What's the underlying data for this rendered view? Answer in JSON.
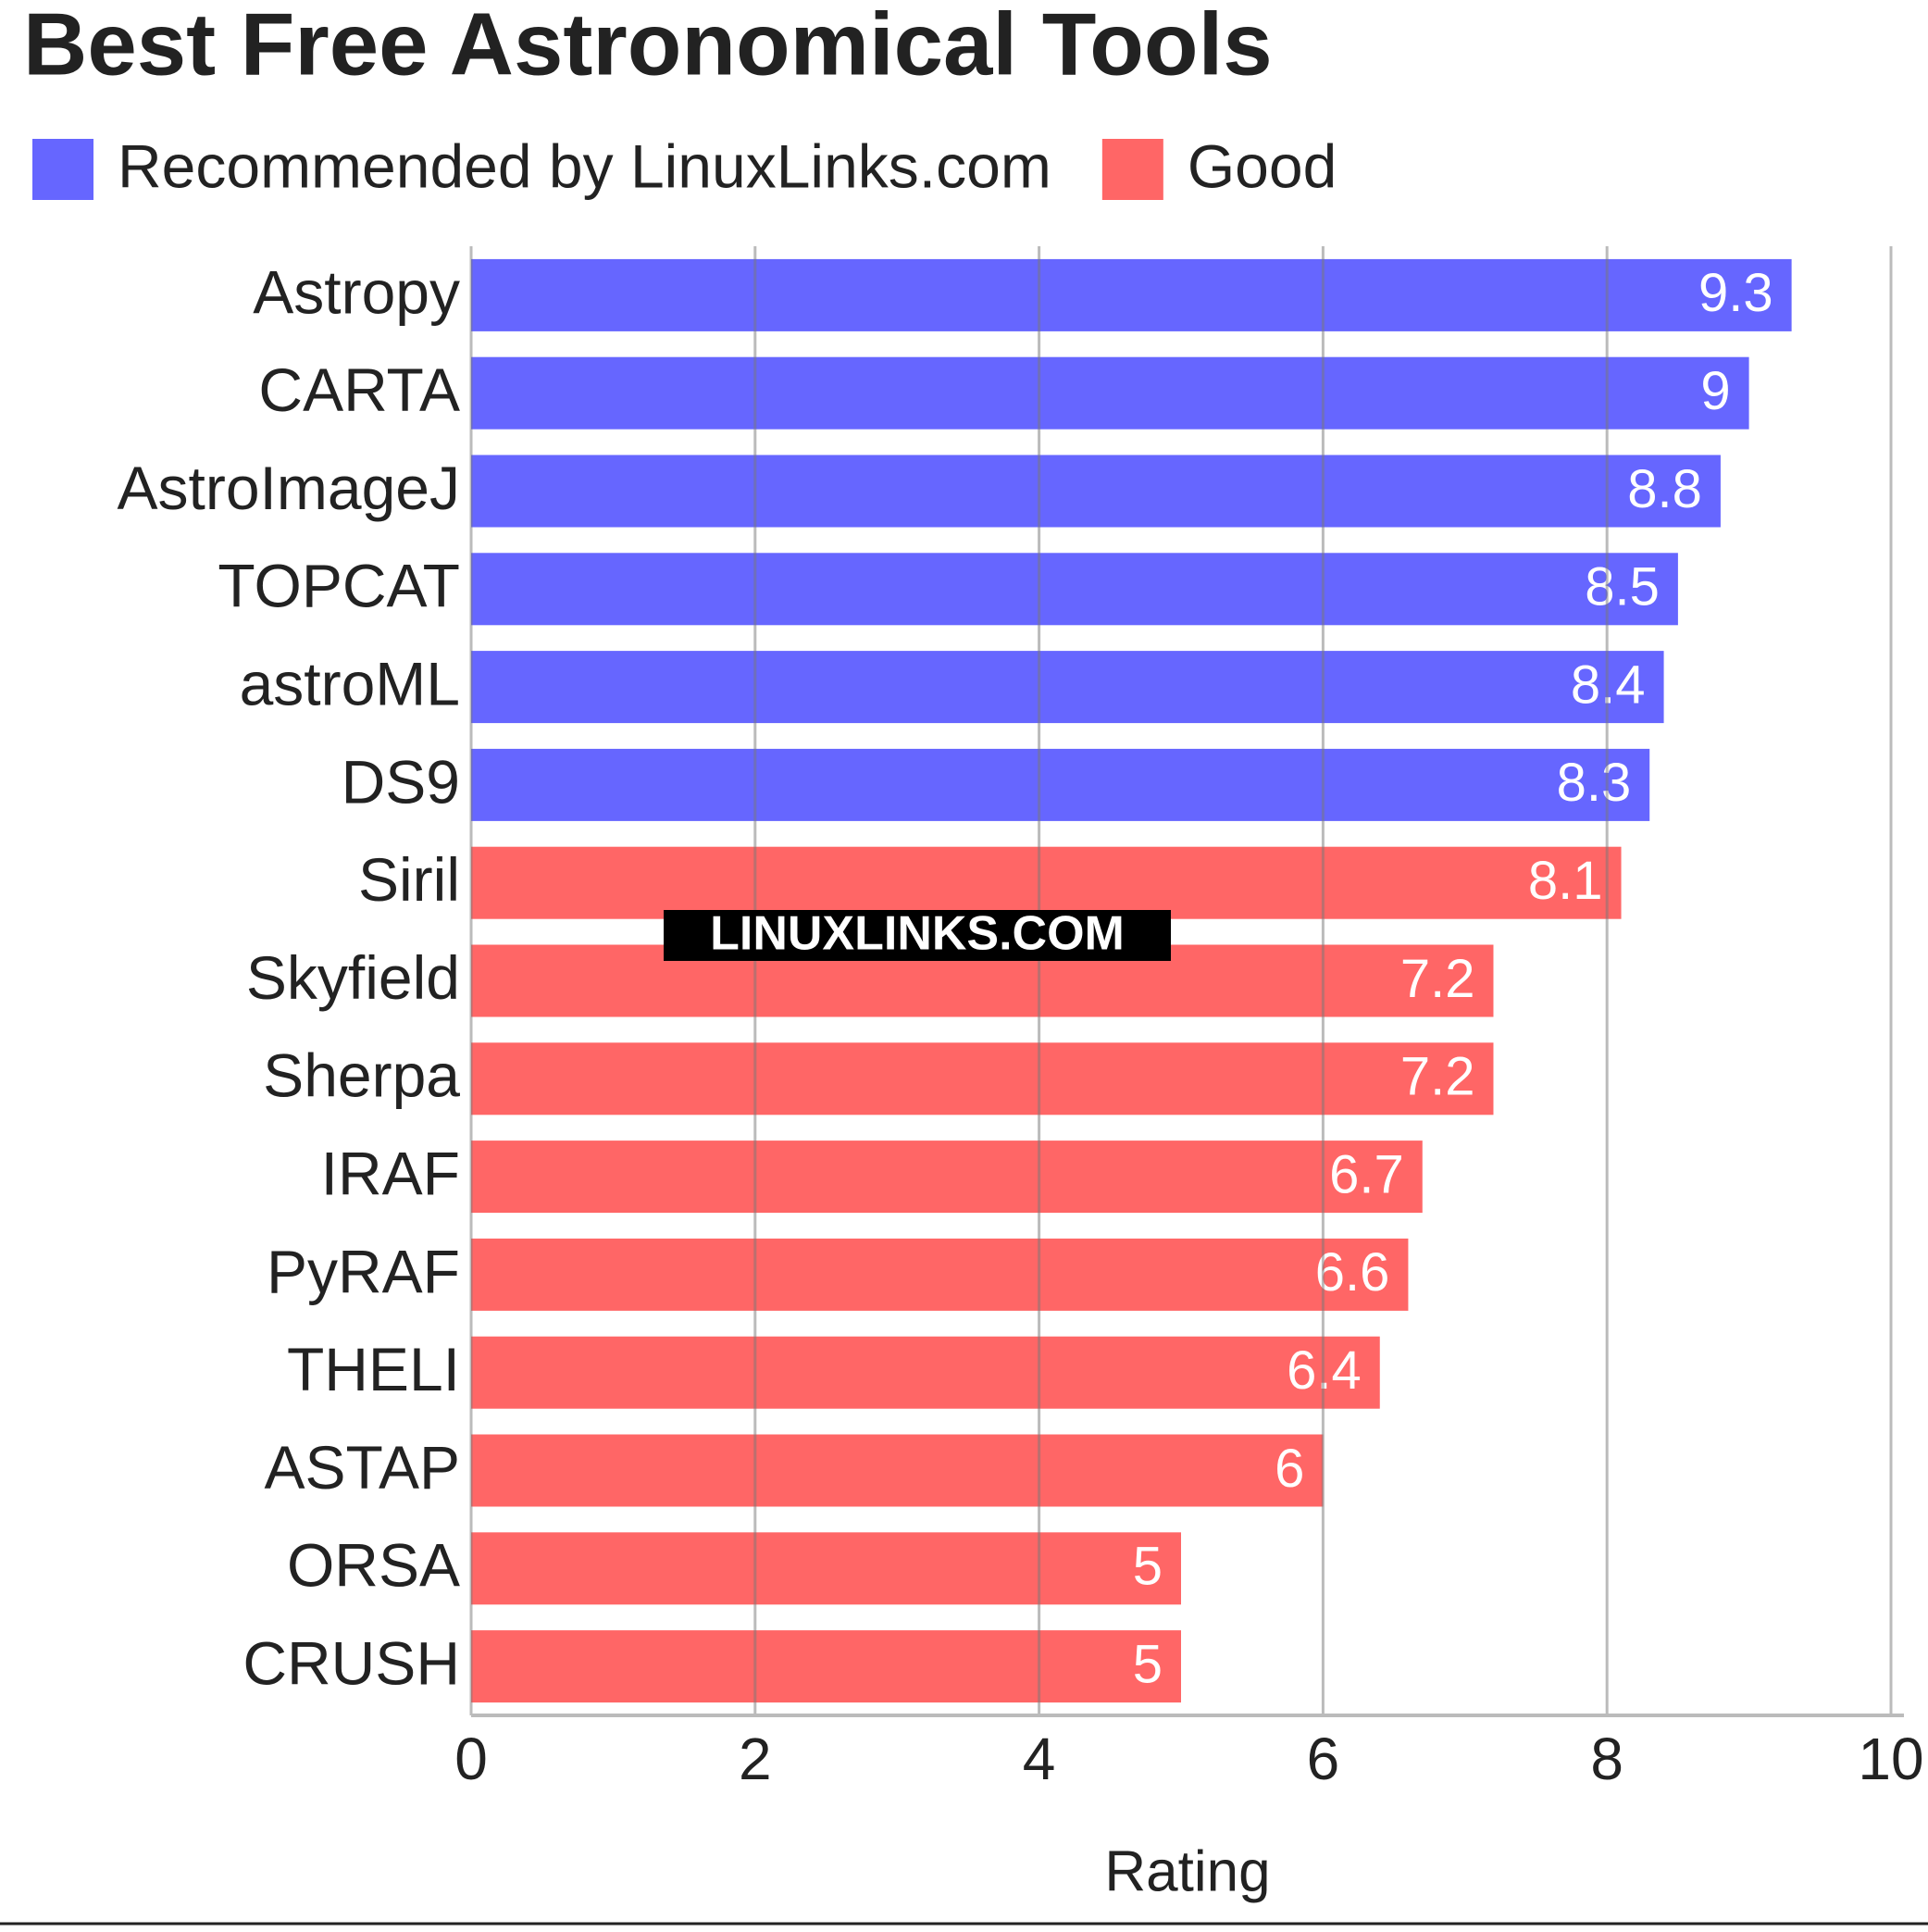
{
  "chart_data": {
    "type": "hbar",
    "title": "Best Free Astronomical Tools",
    "categories": [
      "Astropy",
      "CARTA",
      "AstroImageJ",
      "TOPCAT",
      "astroML",
      "DS9",
      "Siril",
      "Skyfield",
      "Sherpa",
      "IRAF",
      "PyRAF",
      "THELI",
      "ASTAP",
      "ORSA",
      "CRUSH"
    ],
    "series": [
      {
        "name": "Recommended by LinuxLinks.com",
        "color": "#6666ff",
        "values": [
          9.3,
          9,
          8.8,
          8.5,
          8.4,
          8.3,
          null,
          null,
          null,
          null,
          null,
          null,
          null,
          null,
          null
        ]
      },
      {
        "name": "Good",
        "color": "#ff6666",
        "values": [
          null,
          null,
          null,
          null,
          null,
          null,
          8.1,
          7.2,
          7.2,
          6.7,
          6.6,
          6.4,
          6,
          5,
          5
        ]
      }
    ],
    "xlabel": "Rating",
    "xlim": [
      0,
      10
    ],
    "xticks": [
      0,
      2,
      4,
      6,
      8,
      10
    ],
    "grid": true,
    "watermark": "LINUXLINKS.COM"
  }
}
